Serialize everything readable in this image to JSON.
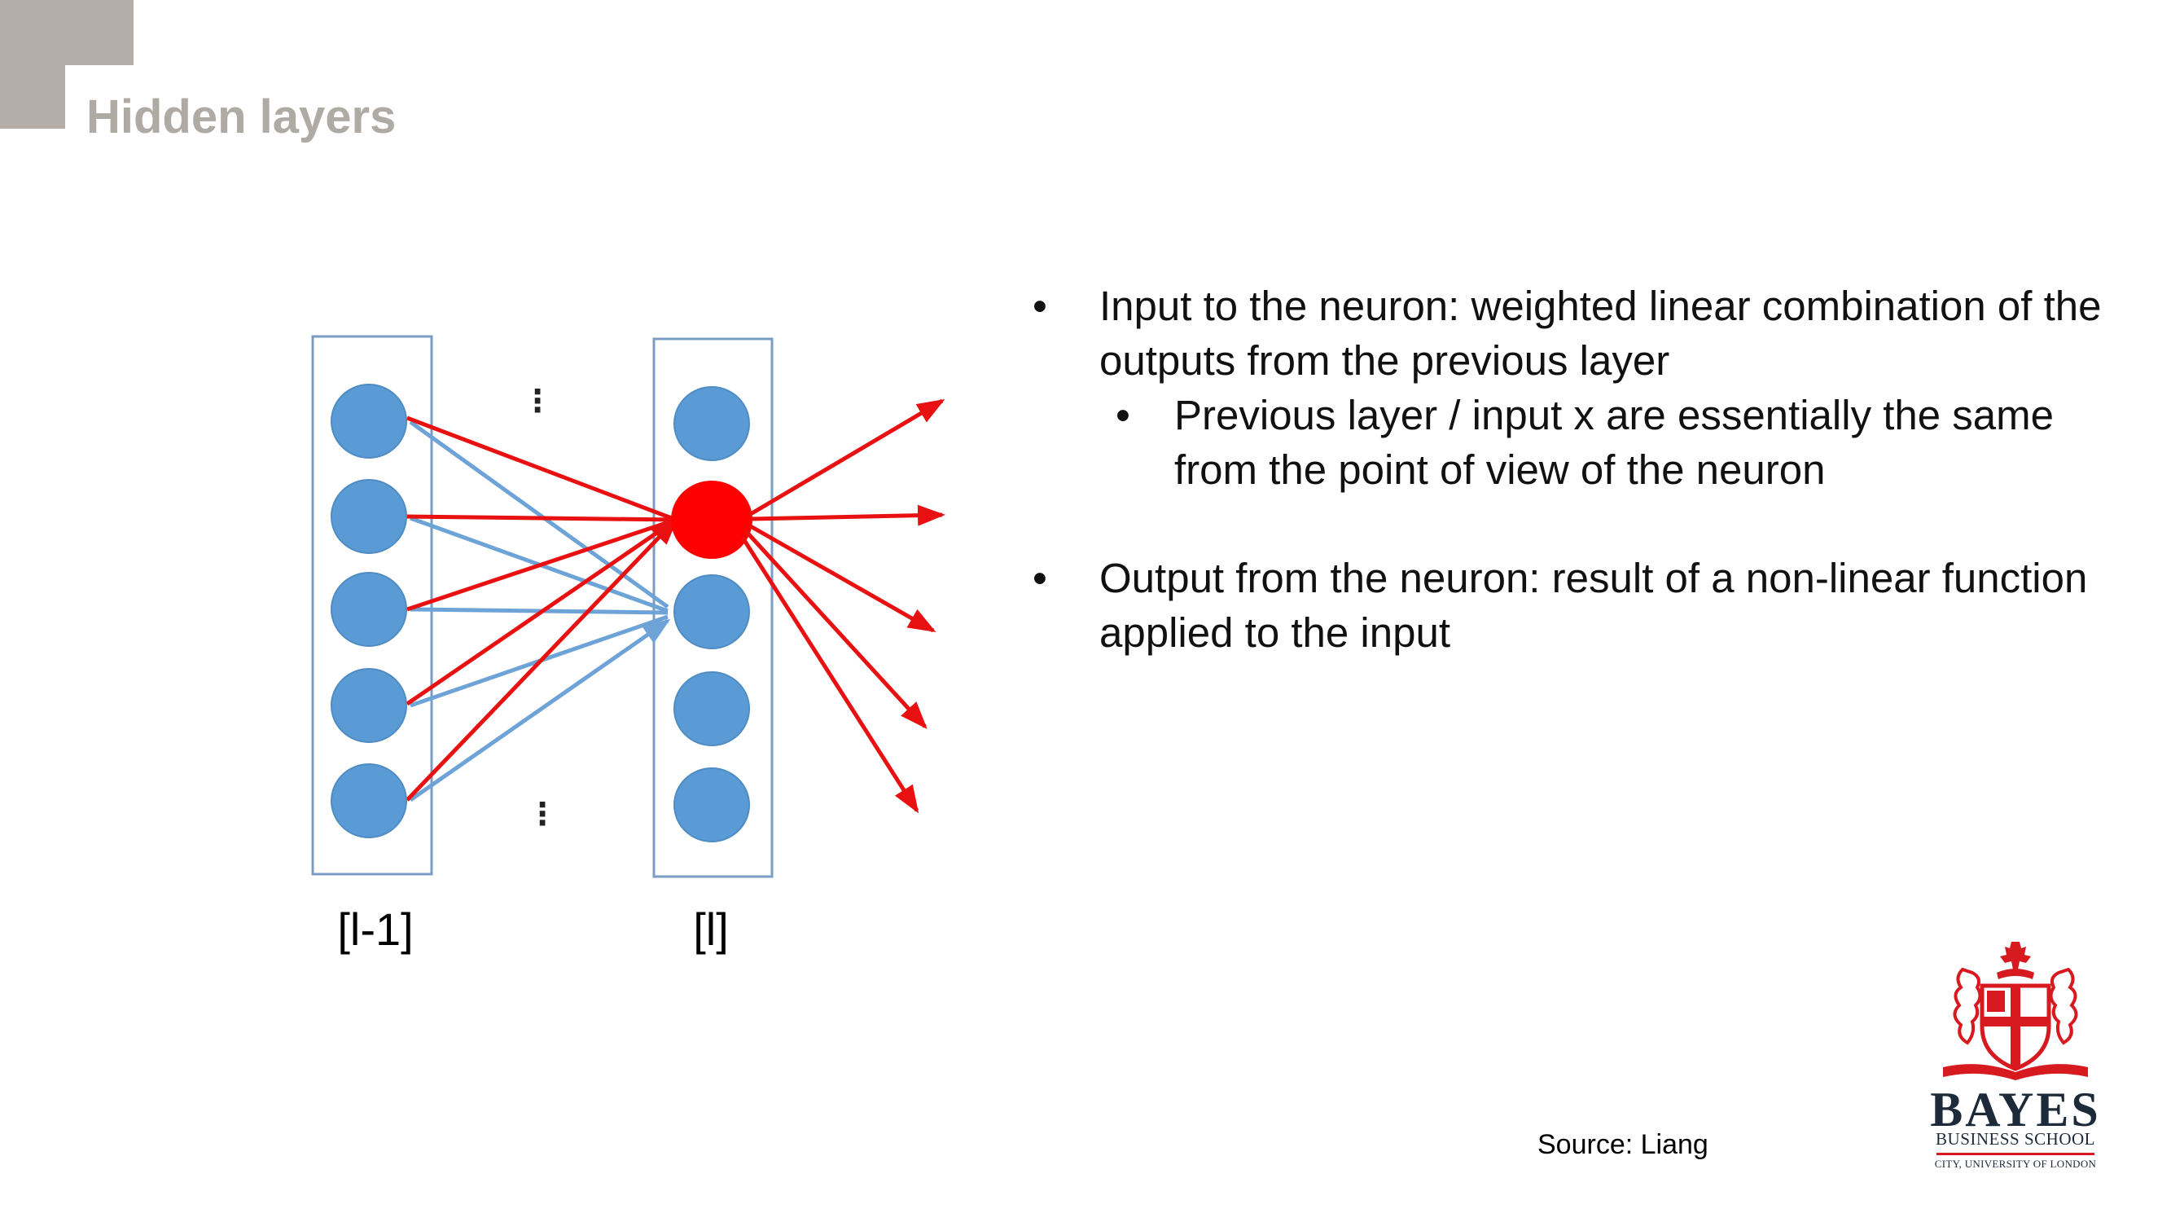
{
  "slide": {
    "title": "Hidden layers",
    "source": "Source: Liang"
  },
  "diagram": {
    "layers": [
      {
        "label": "[l-1]",
        "node_count": 5
      },
      {
        "label": "[l]",
        "node_count": 5,
        "highlighted_node": 2
      }
    ],
    "ellipsis": "⋮",
    "highlighted_outputs": 5,
    "colors": {
      "node": "#5b9bd5",
      "node_border": "#4f8cc4",
      "highlight": "#ff0000",
      "blue_edge": "#6ea3d8",
      "red_edge": "#e81010",
      "box_border": "#7b9cc4"
    }
  },
  "bullets": [
    {
      "level": 1,
      "text": "Input to the neuron: weighted linear combination of the outputs from the previous layer"
    },
    {
      "level": 2,
      "text": "Previous layer / input x are essentially the same from the point of view of the neuron"
    },
    {
      "level": 1,
      "text": "Output from the neuron: result of a non-linear function applied to the input"
    }
  ],
  "bullet_symbol": "•",
  "logo": {
    "name": "BAYES",
    "subtitle": "BUSINESS SCHOOL",
    "university": "CITY, UNIVERSITY OF LONDON",
    "colors": {
      "crest": "#d71920",
      "text": "#1c2a3a"
    }
  },
  "theme": {
    "corner": "#b5aea8",
    "title_color": "#b0aaa5"
  }
}
